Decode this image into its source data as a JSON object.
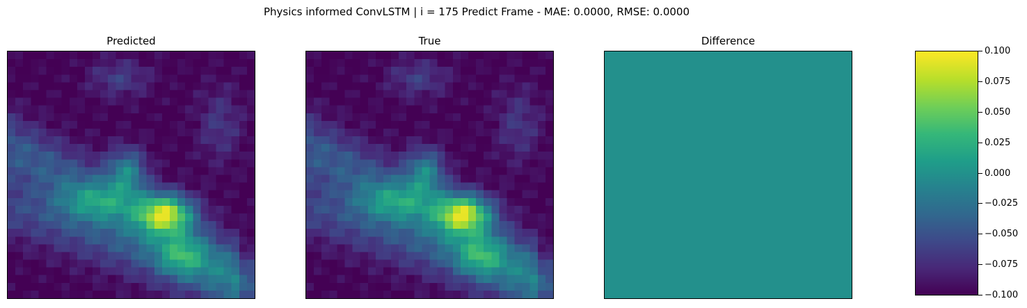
{
  "chart_data": {
    "type": "heatmap",
    "title": "Physics informed ConvLSTM | i = 175 Predict Frame - MAE: 0.0000, RMSE: 0.0000",
    "panels": [
      {
        "title": "Predicted",
        "kind": "field"
      },
      {
        "title": "True",
        "kind": "field"
      },
      {
        "title": "Difference",
        "kind": "constant",
        "value": 0.0
      }
    ],
    "grid_size": 32,
    "colormap": "viridis",
    "colorbar": {
      "range": [
        -0.1,
        0.1
      ],
      "ticks": [
        "0.100",
        "0.075",
        "0.050",
        "0.025",
        "0.000",
        "−0.025",
        "−0.050",
        "−0.075",
        "−0.100"
      ]
    }
  }
}
